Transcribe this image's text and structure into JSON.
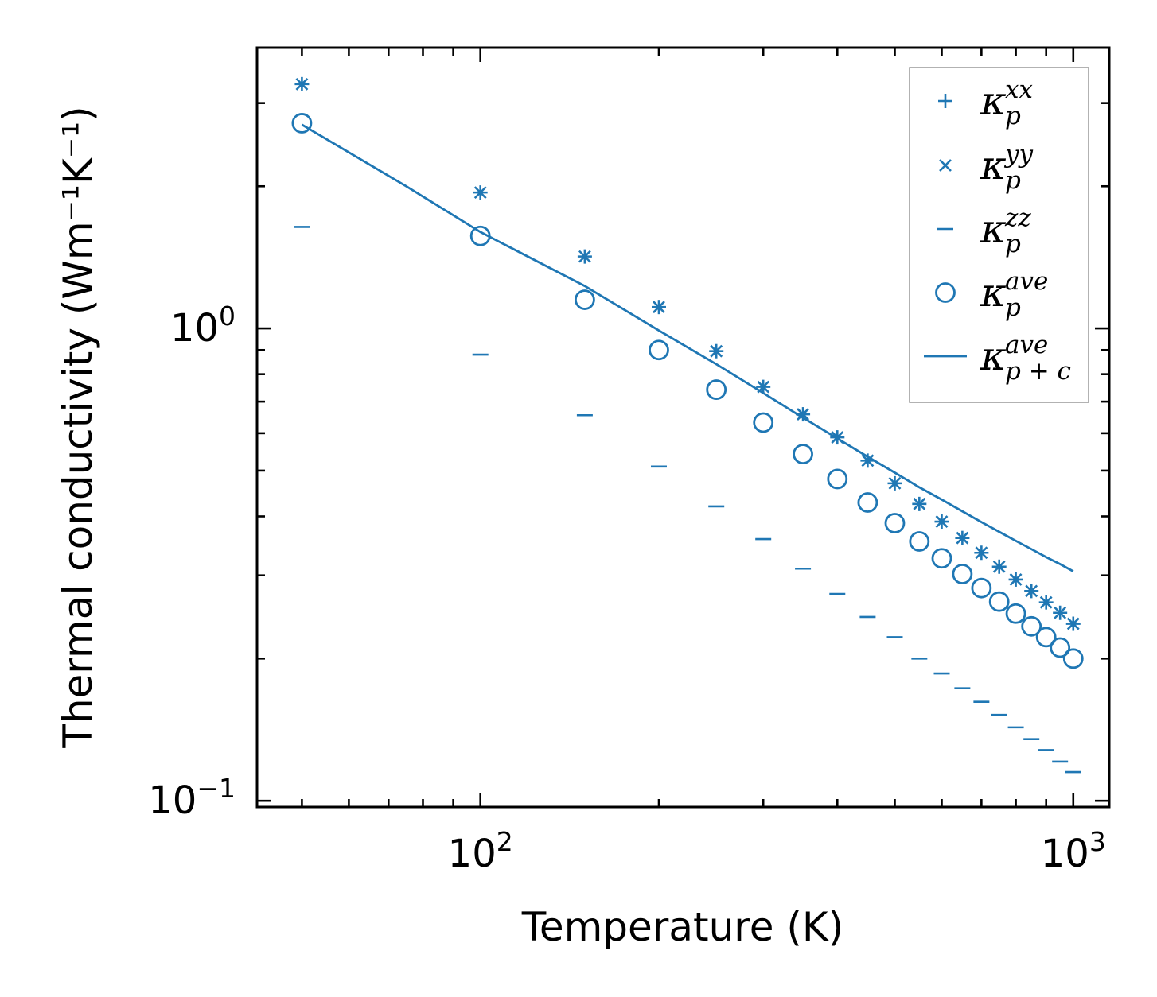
{
  "chart_data": {
    "type": "scatter",
    "xscale": "log",
    "yscale": "log",
    "xlabel": "Temperature (K)",
    "ylabel": "Thermal conductivity (Wm⁻¹K⁻¹)",
    "xlim": [
      42,
      1150
    ],
    "ylim": [
      0.097,
      3.93
    ],
    "x_tick_labels": [
      {
        "value": 100,
        "base": "10",
        "exp": "2"
      },
      {
        "value": 1000,
        "base": "10",
        "exp": "3"
      }
    ],
    "y_tick_labels": [
      {
        "value": 0.1,
        "base": "10",
        "exp": "−1"
      },
      {
        "value": 1.0,
        "base": "10",
        "exp": "0"
      }
    ],
    "x": [
      50,
      100,
      150,
      200,
      250,
      300,
      350,
      400,
      450,
      500,
      550,
      600,
      650,
      700,
      750,
      800,
      850,
      900,
      950,
      1000
    ],
    "series": [
      {
        "name": "kappa_p^xx",
        "marker": "plus",
        "values": [
          3.29,
          1.94,
          1.42,
          1.11,
          0.895,
          0.752,
          0.658,
          0.588,
          0.525,
          0.47,
          0.425,
          0.39,
          0.36,
          0.335,
          0.313,
          0.294,
          0.278,
          0.263,
          0.25,
          0.237
        ]
      },
      {
        "name": "kappa_p^yy",
        "marker": "x",
        "values": [
          3.29,
          1.94,
          1.42,
          1.11,
          0.895,
          0.752,
          0.658,
          0.588,
          0.525,
          0.47,
          0.425,
          0.39,
          0.36,
          0.335,
          0.313,
          0.294,
          0.278,
          0.263,
          0.25,
          0.237
        ]
      },
      {
        "name": "kappa_p^zz",
        "marker": "hline",
        "values": [
          1.64,
          0.88,
          0.655,
          0.51,
          0.42,
          0.358,
          0.31,
          0.274,
          0.245,
          0.222,
          0.2,
          0.186,
          0.173,
          0.162,
          0.152,
          0.143,
          0.135,
          0.128,
          0.121,
          0.115
        ]
      },
      {
        "name": "kappa_p^ave",
        "marker": "circle",
        "values": [
          2.72,
          1.57,
          1.15,
          0.9,
          0.742,
          0.632,
          0.542,
          0.48,
          0.428,
          0.387,
          0.354,
          0.326,
          0.302,
          0.282,
          0.264,
          0.249,
          0.234,
          0.222,
          0.211,
          0.2
        ]
      },
      {
        "name": "kappa_p+c^ave",
        "marker": "line",
        "x": [
          50,
          75,
          100,
          150,
          200,
          250,
          300,
          350,
          400,
          450,
          500,
          550,
          600,
          650,
          700,
          750,
          800,
          850,
          900,
          950,
          1000
        ],
        "values": [
          2.7,
          2.0,
          1.6,
          1.23,
          0.99,
          0.84,
          0.73,
          0.647,
          0.585,
          0.535,
          0.495,
          0.461,
          0.434,
          0.41,
          0.389,
          0.371,
          0.355,
          0.341,
          0.328,
          0.317,
          0.306
        ]
      }
    ],
    "legend": {
      "position": "top-right",
      "entries": [
        {
          "marker": "plus",
          "sym": "κ",
          "sub": "p",
          "sup": "xx"
        },
        {
          "marker": "x",
          "sym": "κ",
          "sub": "p",
          "sup": "yy"
        },
        {
          "marker": "hline",
          "sym": "κ",
          "sub": "p",
          "sup": "zz"
        },
        {
          "marker": "circle",
          "sym": "κ",
          "sub": "p",
          "sup": "ave"
        },
        {
          "marker": "line",
          "sym": "κ",
          "sub": "p + c",
          "sup": "ave"
        }
      ]
    },
    "color": "#1f77b4",
    "grid": false
  }
}
